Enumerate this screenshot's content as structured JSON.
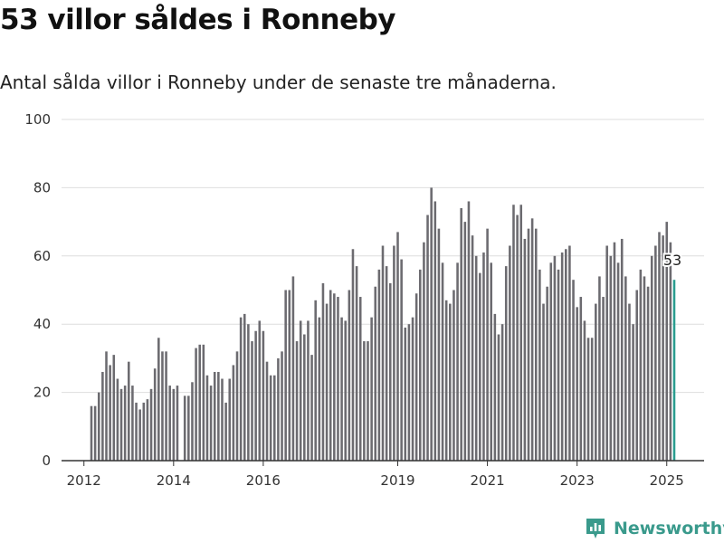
{
  "header": {
    "title": "53 villor såldes i Ronneby",
    "subtitle": "Antal sålda villor i Ronneby under de senaste tre månaderna."
  },
  "brand": {
    "name": "Newsworthy",
    "icon": "newsworthy-logo-icon",
    "color": "#3a9a8c"
  },
  "colors": {
    "bar": "#6c6b70",
    "highlight": "#2a9d8f",
    "grid": "#dedede",
    "axis": "#333333"
  },
  "chart_data": {
    "type": "bar",
    "title": "53 villor såldes i Ronneby",
    "subtitle": "Antal sålda villor i Ronneby under de senaste tre månaderna.",
    "xlabel": "",
    "ylabel": "",
    "ylim": [
      0,
      100
    ],
    "yticks": [
      0,
      20,
      40,
      60,
      80,
      100
    ],
    "xticks": [
      "2012",
      "2014",
      "2016",
      "2019",
      "2021",
      "2023",
      "2025"
    ],
    "grid": true,
    "start": "2012-03",
    "frequency": "monthly",
    "values": [
      16,
      16,
      20,
      26,
      32,
      28,
      31,
      24,
      21,
      22,
      29,
      22,
      17,
      15,
      17,
      18,
      21,
      27,
      36,
      32,
      32,
      22,
      21,
      22,
      0,
      19,
      19,
      23,
      33,
      34,
      34,
      25,
      22,
      26,
      26,
      24,
      17,
      24,
      28,
      32,
      42,
      43,
      40,
      35,
      38,
      41,
      38,
      29,
      25,
      25,
      30,
      32,
      50,
      50,
      54,
      35,
      41,
      37,
      41,
      31,
      47,
      42,
      52,
      46,
      50,
      49,
      48,
      42,
      41,
      50,
      62,
      57,
      48,
      35,
      35,
      42,
      51,
      56,
      63,
      57,
      52,
      63,
      67,
      59,
      39,
      40,
      42,
      49,
      56,
      64,
      72,
      80,
      76,
      68,
      58,
      47,
      46,
      50,
      58,
      74,
      70,
      76,
      66,
      60,
      55,
      61,
      68,
      58,
      43,
      37,
      40,
      57,
      63,
      75,
      72,
      75,
      65,
      68,
      71,
      68,
      56,
      46,
      51,
      58,
      60,
      56,
      61,
      62,
      63,
      53,
      45,
      48,
      41,
      36,
      36,
      46,
      54,
      48,
      63,
      60,
      64,
      58,
      65,
      54,
      46,
      40,
      50,
      56,
      54,
      51,
      60,
      63,
      67,
      66,
      70,
      64,
      53
    ],
    "highlight": {
      "value": 53,
      "label": "53"
    }
  }
}
